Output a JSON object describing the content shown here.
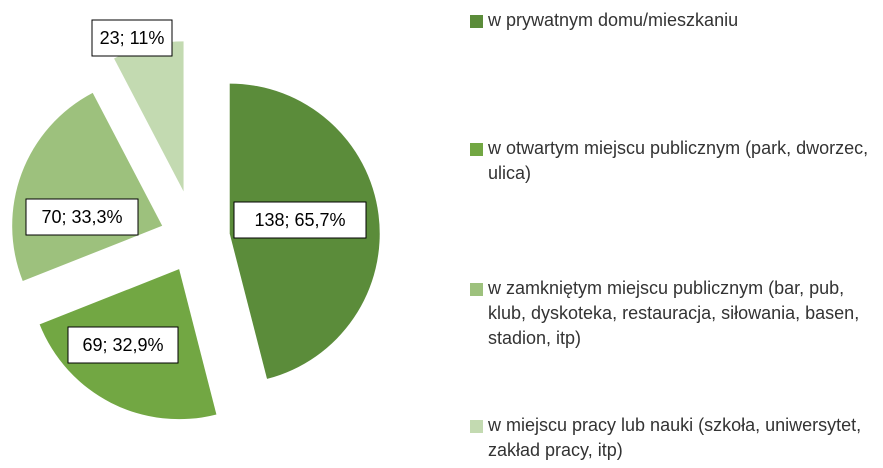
{
  "chart_data": {
    "type": "pie",
    "categories": [
      "w prywatnym domu/mieszkaniu",
      "w otwartym miejscu publicznym (park, dworzec, ulica)",
      "w zamkniętym miejscu publicznym (bar, pub, klub, dyskoteka, restauracja, siłowania, basen, stadion, itp)",
      "w miejscu pracy lub nauki (szkoła, uniwersytet, zakład pracy, itp)"
    ],
    "values": [
      138,
      69,
      70,
      23
    ],
    "value_labels": [
      "138;  65,7%",
      "69; 32,9%",
      "70; 33,3%",
      "23; 11%"
    ],
    "colors": [
      "#5b8c3a",
      "#72a743",
      "#9dc17d",
      "#c3dab1"
    ],
    "legend": "right"
  }
}
